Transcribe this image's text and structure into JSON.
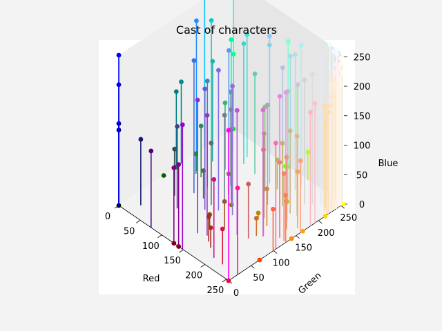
{
  "chart_data": {
    "type": "3d-stem-scatter",
    "title": "Cast of characters",
    "xlabel": "Red",
    "ylabel": "Green",
    "zlabel": "Blue",
    "xlim": [
      0,
      255
    ],
    "ylim": [
      0,
      255
    ],
    "zlim": [
      0,
      255
    ],
    "xticks": [
      0,
      50,
      100,
      150,
      200,
      250
    ],
    "yticks": [
      0,
      50,
      100,
      150,
      200,
      250
    ],
    "zticks": [
      0,
      50,
      100,
      150,
      200,
      250
    ],
    "points": [
      {
        "rgb": [
          0,
          0,
          0
        ],
        "color": "#000000"
      },
      {
        "rgb": [
          0,
          0,
          128
        ],
        "color": "#000080"
      },
      {
        "rgb": [
          0,
          0,
          139
        ],
        "color": "#00008b"
      },
      {
        "rgb": [
          0,
          0,
          205
        ],
        "color": "#0000cd"
      },
      {
        "rgb": [
          0,
          0,
          255
        ],
        "color": "#0000ff"
      },
      {
        "rgb": [
          0,
          100,
          0
        ],
        "color": "#006400"
      },
      {
        "rgb": [
          0,
          128,
          0
        ],
        "color": "#008000"
      },
      {
        "rgb": [
          0,
          128,
          128
        ],
        "color": "#008080"
      },
      {
        "rgb": [
          0,
          139,
          139
        ],
        "color": "#008b8b"
      },
      {
        "rgb": [
          0,
          191,
          255
        ],
        "color": "#00bfff"
      },
      {
        "rgb": [
          0,
          206,
          209
        ],
        "color": "#00ced1"
      },
      {
        "rgb": [
          0,
          250,
          154
        ],
        "color": "#00fa9a"
      },
      {
        "rgb": [
          0,
          255,
          0
        ],
        "color": "#00ff00"
      },
      {
        "rgb": [
          0,
          255,
          127
        ],
        "color": "#00ff7f"
      },
      {
        "rgb": [
          0,
          255,
          255
        ],
        "color": "#00ffff"
      },
      {
        "rgb": [
          25,
          25,
          112
        ],
        "color": "#191970"
      },
      {
        "rgb": [
          30,
          144,
          255
        ],
        "color": "#1e90ff"
      },
      {
        "rgb": [
          32,
          178,
          170
        ],
        "color": "#20b2aa"
      },
      {
        "rgb": [
          34,
          139,
          34
        ],
        "color": "#228b22"
      },
      {
        "rgb": [
          46,
          139,
          87
        ],
        "color": "#2e8b57"
      },
      {
        "rgb": [
          47,
          79,
          79
        ],
        "color": "#2f4f4f"
      },
      {
        "rgb": [
          50,
          205,
          50
        ],
        "color": "#32cd32"
      },
      {
        "rgb": [
          60,
          179,
          113
        ],
        "color": "#3cb371"
      },
      {
        "rgb": [
          64,
          224,
          208
        ],
        "color": "#40e0d0"
      },
      {
        "rgb": [
          65,
          105,
          225
        ],
        "color": "#4169e1"
      },
      {
        "rgb": [
          70,
          130,
          180
        ],
        "color": "#4682b4"
      },
      {
        "rgb": [
          72,
          61,
          139
        ],
        "color": "#483d8b"
      },
      {
        "rgb": [
          72,
          209,
          204
        ],
        "color": "#48d1cc"
      },
      {
        "rgb": [
          75,
          0,
          130
        ],
        "color": "#4b0082"
      },
      {
        "rgb": [
          85,
          107,
          47
        ],
        "color": "#556b2f"
      },
      {
        "rgb": [
          95,
          158,
          160
        ],
        "color": "#5f9ea0"
      },
      {
        "rgb": [
          100,
          149,
          237
        ],
        "color": "#6495ed"
      },
      {
        "rgb": [
          102,
          205,
          170
        ],
        "color": "#66cdaa"
      },
      {
        "rgb": [
          105,
          105,
          105
        ],
        "color": "#696969"
      },
      {
        "rgb": [
          106,
          90,
          205
        ],
        "color": "#6a5acd"
      },
      {
        "rgb": [
          107,
          142,
          35
        ],
        "color": "#6b8e23"
      },
      {
        "rgb": [
          112,
          128,
          144
        ],
        "color": "#708090"
      },
      {
        "rgb": [
          119,
          136,
          153
        ],
        "color": "#778899"
      },
      {
        "rgb": [
          123,
          104,
          238
        ],
        "color": "#7b68ee"
      },
      {
        "rgb": [
          124,
          252,
          0
        ],
        "color": "#7cfc00"
      },
      {
        "rgb": [
          127,
          255,
          0
        ],
        "color": "#7fff00"
      },
      {
        "rgb": [
          127,
          255,
          212
        ],
        "color": "#7fffd4"
      },
      {
        "rgb": [
          128,
          0,
          0
        ],
        "color": "#800000"
      },
      {
        "rgb": [
          128,
          0,
          128
        ],
        "color": "#800080"
      },
      {
        "rgb": [
          128,
          128,
          0
        ],
        "color": "#808000"
      },
      {
        "rgb": [
          128,
          128,
          128
        ],
        "color": "#808080"
      },
      {
        "rgb": [
          135,
          206,
          235
        ],
        "color": "#87ceeb"
      },
      {
        "rgb": [
          135,
          206,
          250
        ],
        "color": "#87cefa"
      },
      {
        "rgb": [
          138,
          43,
          226
        ],
        "color": "#8a2be2"
      },
      {
        "rgb": [
          139,
          0,
          0
        ],
        "color": "#8b0000"
      },
      {
        "rgb": [
          139,
          0,
          139
        ],
        "color": "#8b008b"
      },
      {
        "rgb": [
          139,
          69,
          19
        ],
        "color": "#8b4513"
      },
      {
        "rgb": [
          143,
          188,
          143
        ],
        "color": "#8fbc8f"
      },
      {
        "rgb": [
          144,
          238,
          144
        ],
        "color": "#90ee90"
      },
      {
        "rgb": [
          147,
          112,
          219
        ],
        "color": "#9370db"
      },
      {
        "rgb": [
          148,
          0,
          211
        ],
        "color": "#9400d3"
      },
      {
        "rgb": [
          152,
          251,
          152
        ],
        "color": "#98fb98"
      },
      {
        "rgb": [
          153,
          50,
          204
        ],
        "color": "#9932cc"
      },
      {
        "rgb": [
          154,
          205,
          50
        ],
        "color": "#9acd32"
      },
      {
        "rgb": [
          160,
          82,
          45
        ],
        "color": "#a0522d"
      },
      {
        "rgb": [
          165,
          42,
          42
        ],
        "color": "#a52a2a"
      },
      {
        "rgb": [
          169,
          169,
          169
        ],
        "color": "#a9a9a9"
      },
      {
        "rgb": [
          173,
          216,
          230
        ],
        "color": "#add8e6"
      },
      {
        "rgb": [
          173,
          255,
          47
        ],
        "color": "#adff2f"
      },
      {
        "rgb": [
          175,
          238,
          238
        ],
        "color": "#afeeee"
      },
      {
        "rgb": [
          176,
          196,
          222
        ],
        "color": "#b0c4de"
      },
      {
        "rgb": [
          176,
          224,
          230
        ],
        "color": "#b0e0e6"
      },
      {
        "rgb": [
          178,
          34,
          34
        ],
        "color": "#b22222"
      },
      {
        "rgb": [
          184,
          134,
          11
        ],
        "color": "#b8860b"
      },
      {
        "rgb": [
          186,
          85,
          211
        ],
        "color": "#ba55d3"
      },
      {
        "rgb": [
          188,
          143,
          143
        ],
        "color": "#bc8f8f"
      },
      {
        "rgb": [
          189,
          183,
          107
        ],
        "color": "#bdb76b"
      },
      {
        "rgb": [
          192,
          192,
          192
        ],
        "color": "#c0c0c0"
      },
      {
        "rgb": [
          199,
          21,
          133
        ],
        "color": "#c71585"
      },
      {
        "rgb": [
          205,
          92,
          92
        ],
        "color": "#cd5c5c"
      },
      {
        "rgb": [
          205,
          133,
          63
        ],
        "color": "#cd853f"
      },
      {
        "rgb": [
          210,
          105,
          30
        ],
        "color": "#d2691e"
      },
      {
        "rgb": [
          210,
          180,
          140
        ],
        "color": "#d2b48c"
      },
      {
        "rgb": [
          211,
          211,
          211
        ],
        "color": "#d3d3d3"
      },
      {
        "rgb": [
          216,
          191,
          216
        ],
        "color": "#d8bfd8"
      },
      {
        "rgb": [
          218,
          112,
          214
        ],
        "color": "#da70d6"
      },
      {
        "rgb": [
          218,
          165,
          32
        ],
        "color": "#daa520"
      },
      {
        "rgb": [
          219,
          112,
          147
        ],
        "color": "#db7093"
      },
      {
        "rgb": [
          220,
          20,
          60
        ],
        "color": "#dc143c"
      },
      {
        "rgb": [
          220,
          220,
          220
        ],
        "color": "#dcdcdc"
      },
      {
        "rgb": [
          221,
          160,
          221
        ],
        "color": "#dda0dd"
      },
      {
        "rgb": [
          222,
          184,
          135
        ],
        "color": "#deb887"
      },
      {
        "rgb": [
          224,
          255,
          255
        ],
        "color": "#e0ffff"
      },
      {
        "rgb": [
          230,
          230,
          250
        ],
        "color": "#e6e6fa"
      },
      {
        "rgb": [
          233,
          150,
          122
        ],
        "color": "#e9967a"
      },
      {
        "rgb": [
          238,
          130,
          238
        ],
        "color": "#ee82ee"
      },
      {
        "rgb": [
          238,
          232,
          170
        ],
        "color": "#eee8aa"
      },
      {
        "rgb": [
          240,
          128,
          128
        ],
        "color": "#f08080"
      },
      {
        "rgb": [
          240,
          230,
          140
        ],
        "color": "#f0e68c"
      },
      {
        "rgb": [
          240,
          248,
          255
        ],
        "color": "#f0f8ff"
      },
      {
        "rgb": [
          240,
          255,
          255
        ],
        "color": "#f0ffff"
      },
      {
        "rgb": [
          244,
          164,
          96
        ],
        "color": "#f4a460"
      },
      {
        "rgb": [
          245,
          222,
          179
        ],
        "color": "#f5deb3"
      },
      {
        "rgb": [
          245,
          245,
          220
        ],
        "color": "#f5f5dc"
      },
      {
        "rgb": [
          248,
          248,
          255
        ],
        "color": "#f8f8ff"
      },
      {
        "rgb": [
          250,
          128,
          114
        ],
        "color": "#fa8072"
      },
      {
        "rgb": [
          250,
          235,
          215
        ],
        "color": "#faebd7"
      },
      {
        "rgb": [
          250,
          240,
          230
        ],
        "color": "#faf0e6"
      },
      {
        "rgb": [
          250,
          250,
          210
        ],
        "color": "#fafad2"
      },
      {
        "rgb": [
          253,
          245,
          230
        ],
        "color": "#fdf5e6"
      },
      {
        "rgb": [
          255,
          0,
          0
        ],
        "color": "#ff0000"
      },
      {
        "rgb": [
          255,
          0,
          255
        ],
        "color": "#ff00ff"
      },
      {
        "rgb": [
          255,
          20,
          147
        ],
        "color": "#ff1493"
      },
      {
        "rgb": [
          255,
          69,
          0
        ],
        "color": "#ff4500"
      },
      {
        "rgb": [
          255,
          99,
          71
        ],
        "color": "#ff6347"
      },
      {
        "rgb": [
          255,
          105,
          180
        ],
        "color": "#ff69b4"
      },
      {
        "rgb": [
          255,
          127,
          80
        ],
        "color": "#ff7f50"
      },
      {
        "rgb": [
          255,
          140,
          0
        ],
        "color": "#ff8c00"
      },
      {
        "rgb": [
          255,
          160,
          122
        ],
        "color": "#ffa07a"
      },
      {
        "rgb": [
          255,
          165,
          0
        ],
        "color": "#ffa500"
      },
      {
        "rgb": [
          255,
          182,
          193
        ],
        "color": "#ffb6c1"
      },
      {
        "rgb": [
          255,
          192,
          203
        ],
        "color": "#ffc0cb"
      },
      {
        "rgb": [
          255,
          215,
          0
        ],
        "color": "#ffd700"
      },
      {
        "rgb": [
          255,
          218,
          185
        ],
        "color": "#ffdab9"
      },
      {
        "rgb": [
          255,
          222,
          173
        ],
        "color": "#ffdead"
      },
      {
        "rgb": [
          255,
          228,
          181
        ],
        "color": "#ffe4b5"
      },
      {
        "rgb": [
          255,
          228,
          196
        ],
        "color": "#ffe4c4"
      },
      {
        "rgb": [
          255,
          228,
          225
        ],
        "color": "#ffe4e1"
      },
      {
        "rgb": [
          255,
          235,
          205
        ],
        "color": "#ffebcd"
      },
      {
        "rgb": [
          255,
          239,
          213
        ],
        "color": "#ffefd5"
      },
      {
        "rgb": [
          255,
          240,
          245
        ],
        "color": "#fff0f5"
      },
      {
        "rgb": [
          255,
          245,
          238
        ],
        "color": "#fff5ee"
      },
      {
        "rgb": [
          255,
          248,
          220
        ],
        "color": "#fff8dc"
      },
      {
        "rgb": [
          255,
          250,
          205
        ],
        "color": "#fffacd"
      },
      {
        "rgb": [
          255,
          250,
          240
        ],
        "color": "#fffaf0"
      },
      {
        "rgb": [
          255,
          250,
          250
        ],
        "color": "#fffafa"
      },
      {
        "rgb": [
          255,
          255,
          0
        ],
        "color": "#ffff00"
      },
      {
        "rgb": [
          255,
          255,
          224
        ],
        "color": "#ffffe0"
      },
      {
        "rgb": [
          255,
          255,
          240
        ],
        "color": "#fffff0"
      },
      {
        "rgb": [
          255,
          255,
          255
        ],
        "color": "#ffffff"
      }
    ]
  }
}
